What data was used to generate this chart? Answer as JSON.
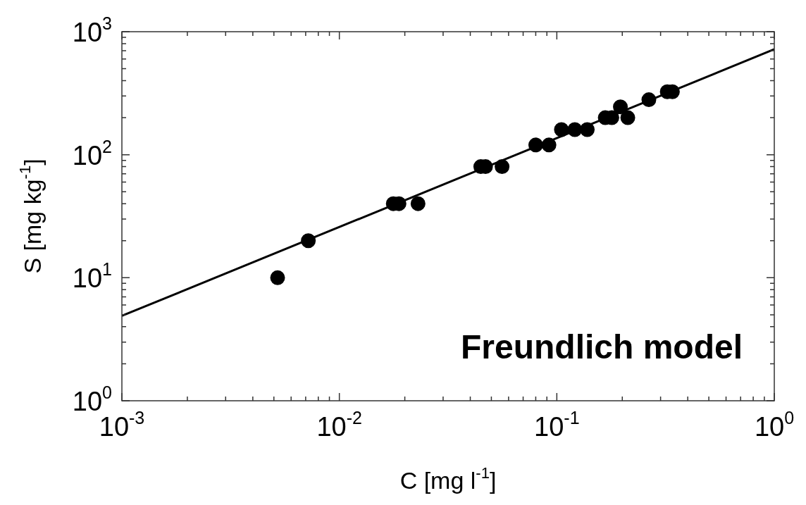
{
  "chart_data": {
    "type": "scatter",
    "xlabel": "C [mg l$^{-1}$]",
    "ylabel": "S [mg kg$^{-1}$]",
    "log": "xy",
    "grid": false,
    "legend": false,
    "xlim": [
      0.001,
      1
    ],
    "ylim": [
      1,
      1000
    ],
    "xticks": [
      {
        "value": 0.001,
        "label": "10$^{-3}$"
      },
      {
        "value": 0.002,
        "label": null
      },
      {
        "value": 0.003,
        "label": null
      },
      {
        "value": 0.004,
        "label": null
      },
      {
        "value": 0.005,
        "label": null
      },
      {
        "value": 0.006,
        "label": null
      },
      {
        "value": 0.007,
        "label": null
      },
      {
        "value": 0.008,
        "label": null
      },
      {
        "value": 0.009,
        "label": null
      },
      {
        "value": 0.01,
        "label": "10$^{-2}$"
      },
      {
        "value": 0.02,
        "label": null
      },
      {
        "value": 0.03,
        "label": null
      },
      {
        "value": 0.04,
        "label": null
      },
      {
        "value": 0.05,
        "label": null
      },
      {
        "value": 0.06,
        "label": null
      },
      {
        "value": 0.07,
        "label": null
      },
      {
        "value": 0.08,
        "label": null
      },
      {
        "value": 0.09,
        "label": null
      },
      {
        "value": 0.1,
        "label": "10$^{-1}$"
      },
      {
        "value": 0.2,
        "label": null
      },
      {
        "value": 0.3,
        "label": null
      },
      {
        "value": 0.4,
        "label": null
      },
      {
        "value": 0.5,
        "label": null
      },
      {
        "value": 0.6,
        "label": null
      },
      {
        "value": 0.7,
        "label": null
      },
      {
        "value": 0.8,
        "label": null
      },
      {
        "value": 0.9,
        "label": null
      },
      {
        "value": 1,
        "label": "10$^{0}$"
      }
    ],
    "yticks": [
      {
        "value": 1,
        "label": "10$^{0}$"
      },
      {
        "value": 2,
        "label": null
      },
      {
        "value": 3,
        "label": null
      },
      {
        "value": 4,
        "label": null
      },
      {
        "value": 5,
        "label": null
      },
      {
        "value": 6,
        "label": null
      },
      {
        "value": 7,
        "label": null
      },
      {
        "value": 8,
        "label": null
      },
      {
        "value": 9,
        "label": null
      },
      {
        "value": 10,
        "label": "10$^{1}$"
      },
      {
        "value": 20,
        "label": null
      },
      {
        "value": 30,
        "label": null
      },
      {
        "value": 40,
        "label": null
      },
      {
        "value": 50,
        "label": null
      },
      {
        "value": 60,
        "label": null
      },
      {
        "value": 70,
        "label": null
      },
      {
        "value": 80,
        "label": null
      },
      {
        "value": 90,
        "label": null
      },
      {
        "value": 100,
        "label": "10$^{2}$"
      },
      {
        "value": 200,
        "label": null
      },
      {
        "value": 300,
        "label": null
      },
      {
        "value": 400,
        "label": null
      },
      {
        "value": 500,
        "label": null
      },
      {
        "value": 600,
        "label": null
      },
      {
        "value": 700,
        "label": null
      },
      {
        "value": 800,
        "label": null
      },
      {
        "value": 900,
        "label": null
      },
      {
        "value": 1000,
        "label": "10$^{3}$"
      }
    ],
    "series": [
      {
        "marker": "circle",
        "color": "#000000",
        "x": [
          0.0052,
          0.0072,
          0.0177,
          0.0188,
          0.023,
          0.0447,
          0.047,
          0.056,
          0.08,
          0.092,
          0.105,
          0.121,
          0.138,
          0.167,
          0.179,
          0.196,
          0.212,
          0.265,
          0.322,
          0.34
        ],
        "values": [
          10,
          20,
          40,
          40,
          40,
          80,
          80,
          80,
          120,
          120,
          160,
          160,
          160,
          200,
          200,
          245,
          200,
          280,
          325,
          325
        ]
      },
      {
        "type": "line",
        "marker": "none",
        "color": "#000000",
        "x": [
          0.001,
          1
        ],
        "values": [
          4.9,
          720
        ]
      }
    ],
    "annotations": [
      "Freundlich model"
    ]
  }
}
